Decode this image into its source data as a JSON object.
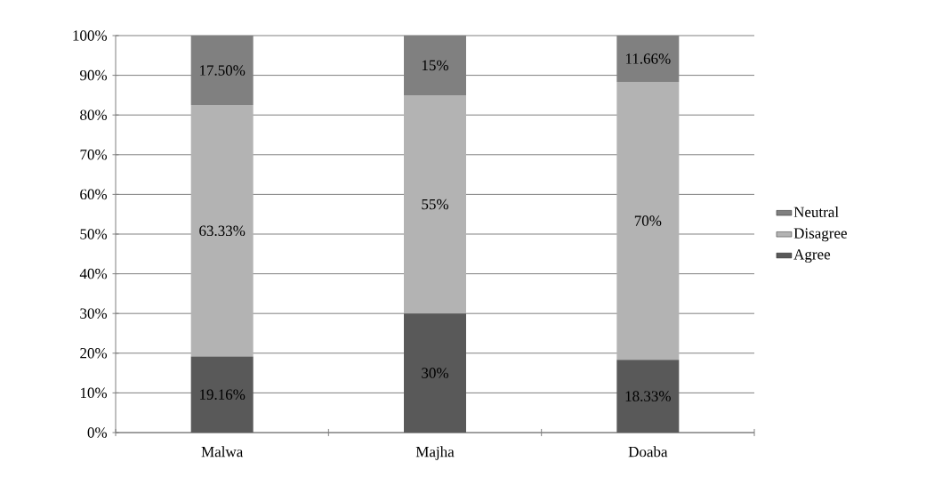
{
  "chart_data": {
    "type": "bar",
    "stacked": true,
    "categories": [
      "Malwa",
      "Majha",
      "Doaba"
    ],
    "series": [
      {
        "name": "Agree",
        "color": "#595959",
        "values": [
          19.16,
          30,
          18.33
        ],
        "value_labels": [
          "19.16%",
          "30%",
          "18.33%"
        ]
      },
      {
        "name": "Disagree",
        "color": "#b3b3b3",
        "values": [
          63.33,
          55,
          70
        ],
        "value_labels": [
          "63.33%",
          "55%",
          "70%"
        ]
      },
      {
        "name": "Neutral",
        "color": "#808080",
        "values": [
          17.5,
          15,
          11.66
        ],
        "value_labels": [
          "17.50%",
          "15%",
          "11.66%"
        ]
      }
    ],
    "ylim": [
      0,
      100
    ],
    "yticks": [
      {
        "value": 0,
        "label": "0%"
      },
      {
        "value": 10,
        "label": "10%"
      },
      {
        "value": 20,
        "label": "20%"
      },
      {
        "value": 30,
        "label": "30%"
      },
      {
        "value": 40,
        "label": "40%"
      },
      {
        "value": 50,
        "label": "50%"
      },
      {
        "value": 60,
        "label": "60%"
      },
      {
        "value": 70,
        "label": "70%"
      },
      {
        "value": 80,
        "label": "80%"
      },
      {
        "value": 90,
        "label": "90%"
      },
      {
        "value": 100,
        "label": "100%"
      }
    ],
    "grid": "y",
    "legend": "right"
  }
}
